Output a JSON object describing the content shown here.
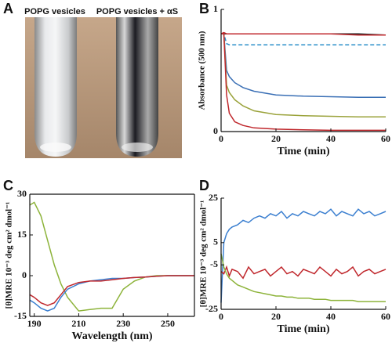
{
  "photo_panel": {
    "panel": "A",
    "labels": [
      "POPG vesicles",
      "POPG vesicles + αS"
    ]
  },
  "chart_data": [
    {
      "type": "line",
      "panel": "B",
      "x_label": "Time (min)",
      "y_label": "Absorbance (500 nm)",
      "x": [
        0,
        1,
        2,
        3,
        5,
        8,
        12,
        20,
        30,
        40,
        50,
        60
      ],
      "xlim": [
        0,
        60
      ],
      "xticks": [
        0,
        20,
        40,
        60
      ],
      "ylim": [
        0,
        1
      ],
      "yticks": [
        0,
        1
      ],
      "box": false,
      "series": [
        {
          "color": "#222222",
          "values": [
            0.8,
            0.8,
            0.8,
            0.8,
            0.8,
            0.8,
            0.8,
            0.8,
            0.8,
            0.8,
            0.8,
            0.79
          ]
        },
        {
          "color": "#c0282d",
          "values": [
            0.8,
            0.81,
            0.8,
            0.8,
            0.8,
            0.8,
            0.8,
            0.8,
            0.8,
            0.8,
            0.79,
            0.79
          ]
        },
        {
          "color": "#2a8fc9",
          "style": "dashed",
          "values": [
            0.8,
            0.8,
            0.72,
            0.71,
            0.71,
            0.71,
            0.71,
            0.71,
            0.71,
            0.71,
            0.71,
            0.71
          ]
        },
        {
          "color": "#3a6fb5",
          "values": [
            0.8,
            0.8,
            0.5,
            0.45,
            0.4,
            0.36,
            0.33,
            0.3,
            0.29,
            0.285,
            0.28,
            0.28
          ]
        },
        {
          "color": "#9aa23a",
          "values": [
            0.8,
            0.8,
            0.38,
            0.32,
            0.26,
            0.21,
            0.17,
            0.14,
            0.13,
            0.125,
            0.12,
            0.12
          ]
        },
        {
          "color": "#c0282d",
          "values": [
            0.8,
            0.8,
            0.3,
            0.15,
            0.08,
            0.05,
            0.03,
            0.02,
            0.015,
            0.01,
            0.01,
            0.01
          ]
        }
      ]
    },
    {
      "type": "line",
      "panel": "C",
      "x_label": "Wavelength (nm)",
      "y_label": "[θ]MRE 10⁻³ deg cm² dmol⁻¹",
      "x": [
        188,
        190,
        193,
        196,
        199,
        202,
        205,
        210,
        215,
        220,
        225,
        230,
        235,
        240,
        245,
        250,
        255,
        262
      ],
      "xlim": [
        188,
        262
      ],
      "xticks": [
        190,
        210,
        230,
        250
      ],
      "ylim": [
        -15,
        30
      ],
      "yticks": [
        -15,
        0,
        15,
        30
      ],
      "box": true,
      "series": [
        {
          "color": "#8db33a",
          "values": [
            26,
            27,
            22,
            13,
            4,
            -3,
            -8,
            -13,
            -12.5,
            -12,
            -12,
            -5,
            -2,
            -0.5,
            0,
            0,
            0,
            0
          ]
        },
        {
          "color": "#3b7fd0",
          "values": [
            -9,
            -10,
            -12,
            -13,
            -12,
            -8,
            -5,
            -3,
            -2,
            -1.5,
            -1,
            -1,
            -0.7,
            -0.5,
            -0.2,
            0,
            0,
            0
          ]
        },
        {
          "color": "#c0282d",
          "values": [
            -7,
            -8,
            -10,
            -11,
            -10,
            -7,
            -4,
            -2.5,
            -2,
            -2,
            -1.5,
            -1,
            -0.7,
            -0.5,
            -0.2,
            0,
            0,
            0
          ]
        }
      ]
    },
    {
      "type": "line",
      "panel": "D",
      "x_label": "Time (min)",
      "y_label": "[θ]MRE 10⁻³ deg cm² dmol⁻¹",
      "x": [
        0,
        1,
        2,
        3,
        4,
        6,
        8,
        10,
        12,
        14,
        16,
        18,
        20,
        22,
        24,
        26,
        28,
        30,
        32,
        34,
        36,
        38,
        40,
        42,
        44,
        46,
        48,
        50,
        52,
        54,
        56,
        58,
        60
      ],
      "xlim": [
        0,
        60
      ],
      "xticks": [
        0,
        20,
        40,
        60
      ],
      "ylim": [
        -25,
        25
      ],
      "yticks": [
        -25,
        -5,
        5,
        25
      ],
      "box": false,
      "series": [
        {
          "color": "#3b7fd0",
          "values": [
            -22,
            5,
            9,
            11,
            12,
            13,
            15,
            14,
            16,
            17,
            16,
            18,
            17,
            19,
            16,
            18,
            17,
            19,
            18,
            17,
            19,
            18,
            20,
            17,
            19,
            18,
            17,
            20,
            18,
            19,
            17,
            18,
            19
          ]
        },
        {
          "color": "#c0282d",
          "values": [
            -8,
            -9,
            -6,
            -10,
            -7,
            -8,
            -11,
            -6,
            -9,
            -8,
            -7,
            -10,
            -8,
            -6,
            -9,
            -8,
            -10,
            -7,
            -8,
            -9,
            -6,
            -8,
            -10,
            -7,
            -9,
            -8,
            -6,
            -10,
            -8,
            -7,
            -9,
            -8,
            -7
          ]
        },
        {
          "color": "#8db33a",
          "values": [
            0,
            -6,
            -9,
            -11,
            -12,
            -14,
            -15,
            -16,
            -17,
            -17.5,
            -18,
            -18.5,
            -19,
            -19,
            -19.5,
            -19.5,
            -20,
            -20,
            -20,
            -20.5,
            -20.5,
            -20.5,
            -21,
            -21,
            -21,
            -21,
            -21,
            -21.5,
            -21.5,
            -21.5,
            -21.5,
            -21.5,
            -21.5
          ]
        }
      ]
    }
  ]
}
